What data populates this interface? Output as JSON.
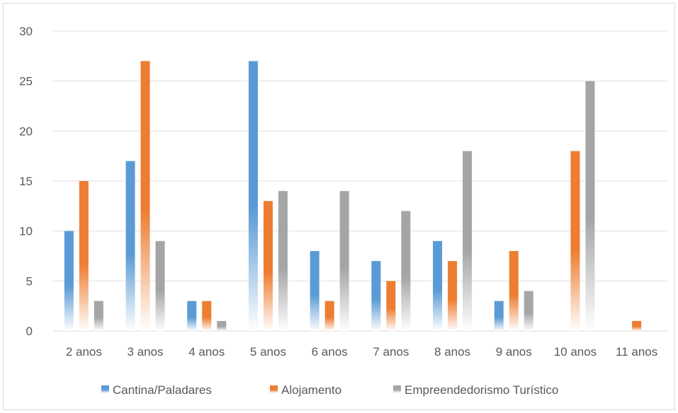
{
  "chart_data": {
    "type": "bar",
    "title": "",
    "xlabel": "",
    "ylabel": "",
    "ylim": [
      0,
      30
    ],
    "yticks": [
      "0",
      "5",
      "10",
      "15",
      "20",
      "25",
      "30"
    ],
    "grid": true,
    "legend_position": "bottom",
    "categories": [
      "2 anos",
      "3 anos",
      "4 anos",
      "5 anos",
      "6 anos",
      "7 anos",
      "8 anos",
      "9 anos",
      "10 anos",
      "11 anos"
    ],
    "series": [
      {
        "name": "Cantina/Paladares",
        "color": "#5b9bd5",
        "values": [
          10,
          17,
          3,
          27,
          8,
          7,
          9,
          3,
          0,
          0
        ]
      },
      {
        "name": "Alojamento",
        "color": "#ed7d31",
        "values": [
          15,
          27,
          3,
          13,
          3,
          5,
          7,
          8,
          18,
          1
        ]
      },
      {
        "name": "Empreendedorismo Turístico",
        "color": "#a5a5a5",
        "values": [
          3,
          9,
          1,
          14,
          14,
          12,
          18,
          4,
          25,
          0
        ]
      }
    ]
  }
}
